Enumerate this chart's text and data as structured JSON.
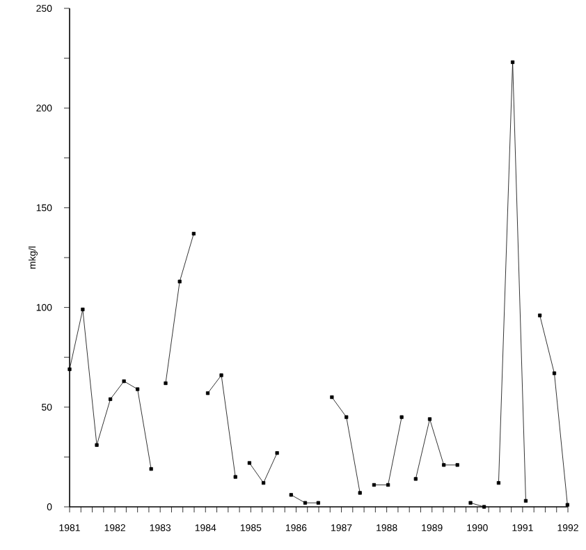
{
  "chart_data": {
    "type": "line",
    "ylabel": "mkg/l",
    "xlim": [
      1981,
      1992
    ],
    "ylim": [
      0,
      250
    ],
    "xticks": [
      1981,
      {
        "value": 1981.25,
        "label": null
      },
      {
        "value": 1981.5,
        "label": null
      },
      {
        "value": 1981.75,
        "label": null
      },
      1982,
      {
        "value": 1982.25,
        "label": null
      },
      {
        "value": 1982.5,
        "label": null
      },
      {
        "value": 1982.75,
        "label": null
      },
      1983,
      {
        "value": 1983.25,
        "label": null
      },
      {
        "value": 1983.5,
        "label": null
      },
      {
        "value": 1983.75,
        "label": null
      },
      1984,
      {
        "value": 1984.25,
        "label": null
      },
      {
        "value": 1984.5,
        "label": null
      },
      {
        "value": 1984.75,
        "label": null
      },
      1985,
      {
        "value": 1985.25,
        "label": null
      },
      {
        "value": 1985.5,
        "label": null
      },
      {
        "value": 1985.75,
        "label": null
      },
      1986,
      {
        "value": 1986.25,
        "label": null
      },
      {
        "value": 1986.5,
        "label": null
      },
      {
        "value": 1986.75,
        "label": null
      },
      1987,
      {
        "value": 1987.25,
        "label": null
      },
      {
        "value": 1987.5,
        "label": null
      },
      {
        "value": 1987.75,
        "label": null
      },
      1988,
      {
        "value": 1988.25,
        "label": null
      },
      {
        "value": 1988.5,
        "label": null
      },
      {
        "value": 1988.75,
        "label": null
      },
      1989,
      {
        "value": 1989.25,
        "label": null
      },
      {
        "value": 1989.5,
        "label": null
      },
      {
        "value": 1989.75,
        "label": null
      },
      1990,
      {
        "value": 1990.25,
        "label": null
      },
      {
        "value": 1990.5,
        "label": null
      },
      {
        "value": 1990.75,
        "label": null
      },
      1991,
      {
        "value": 1991.25,
        "label": null
      },
      {
        "value": 1991.5,
        "label": null
      },
      {
        "value": 1991.75,
        "label": null
      },
      1992
    ],
    "yticks": [
      0,
      {
        "value": 25,
        "label": null
      },
      50,
      {
        "value": 75,
        "label": null
      },
      100,
      {
        "value": 125,
        "label": null
      },
      150,
      {
        "value": 175,
        "label": null
      },
      200,
      {
        "value": 225,
        "label": null
      },
      250
    ],
    "marker": "square",
    "series": [
      {
        "color": "#000000",
        "x": [
          1981.0,
          1981.29,
          1981.6,
          1981.9,
          1982.2,
          1982.5,
          1982.8
        ],
        "values": [
          69,
          99,
          31,
          54,
          63,
          59,
          19
        ]
      },
      {
        "color": "#000000",
        "x": [
          1983.12,
          1983.43,
          1983.74
        ],
        "values": [
          62,
          113,
          137
        ]
      },
      {
        "color": "#000000",
        "x": [
          1984.05,
          1984.35,
          1984.66
        ],
        "values": [
          57,
          66,
          15
        ]
      },
      {
        "color": "#000000",
        "x": [
          1984.97,
          1985.28,
          1985.58
        ],
        "values": [
          22,
          12,
          27
        ]
      },
      {
        "color": "#000000",
        "x": [
          1985.89,
          1986.2,
          1986.49
        ],
        "values": [
          6,
          2,
          2
        ]
      },
      {
        "color": "#000000",
        "x": [
          1986.79,
          1987.11,
          1987.41
        ],
        "values": [
          55,
          45,
          7
        ]
      },
      {
        "color": "#000000",
        "x": [
          1987.72,
          1988.03,
          1988.33
        ],
        "values": [
          11,
          11,
          45
        ]
      },
      {
        "color": "#000000",
        "x": [
          1988.64,
          1988.95,
          1989.26,
          1989.56
        ],
        "values": [
          14,
          44,
          21,
          21
        ]
      },
      {
        "color": "#000000",
        "x": [
          1989.85,
          1990.15
        ],
        "values": [
          2,
          0
        ]
      },
      {
        "color": "#000000",
        "x": [
          1990.47,
          1990.78,
          1991.07
        ],
        "values": [
          12,
          223,
          3
        ]
      },
      {
        "color": "#000000",
        "x": [
          1991.38,
          1991.7,
          1991.99
        ],
        "values": [
          96,
          67,
          1
        ]
      }
    ]
  }
}
